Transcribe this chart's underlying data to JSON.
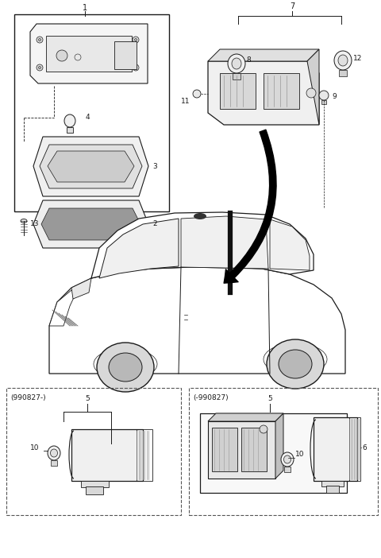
{
  "bg_color": "#ffffff",
  "line_color": "#1a1a1a",
  "figsize": [
    4.8,
    7.02
  ],
  "dpi": 100,
  "fig_w": 480,
  "fig_h": 702,
  "parts": {
    "label_990827_minus": "(990827-)",
    "label_990827_plus": "(-990827)"
  }
}
